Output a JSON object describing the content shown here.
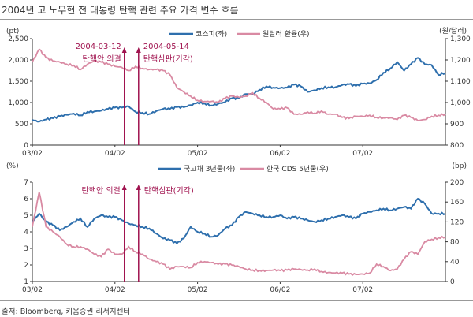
{
  "title": "2004년 고 노무현 전 대통령 탄핵 관련 주요 가격 변수 흐름",
  "source": "출처: Bloomberg, 키움증권 리서치센터",
  "colors": {
    "blue": "#2e6fad",
    "pink": "#d98aa3",
    "annotation": "#a0134f"
  },
  "chart_data": [
    {
      "type": "line",
      "x_ticks": [
        "03/02",
        "04/02",
        "05/02",
        "06/02",
        "07/02"
      ],
      "x_range": [
        "2003-02",
        "2008-02"
      ],
      "ylabel_left": "(pt)",
      "ylabel_right": "(원/달러)",
      "ylim_left": [
        0,
        2500
      ],
      "yticks_left": [
        "0",
        "500",
        "1,000",
        "1,500",
        "2,000",
        "2,500"
      ],
      "ylim_right": [
        800,
        1300
      ],
      "yticks_right": [
        "800",
        "900",
        "1,000",
        "1,100",
        "1,200",
        "1,300"
      ],
      "legend_position": "top-center",
      "series": [
        {
          "name": "코스피(좌)",
          "axis": "left",
          "color": "#2e6fad",
          "values": [
            590,
            550,
            600,
            630,
            680,
            710,
            740,
            700,
            780,
            790,
            810,
            850,
            880,
            880,
            910,
            780,
            760,
            730,
            800,
            850,
            850,
            890,
            890,
            940,
            1000,
            980,
            930,
            970,
            1010,
            1100,
            1100,
            1200,
            1200,
            1300,
            1380,
            1350,
            1340,
            1350,
            1420,
            1380,
            1250,
            1290,
            1340,
            1360,
            1360,
            1410,
            1430,
            1390,
            1440,
            1450,
            1530,
            1700,
            1800,
            1950,
            1750,
            1900,
            2050,
            1900,
            1880,
            1650,
            1700
          ]
        },
        {
          "name": "원달러 환율(우)",
          "axis": "right",
          "color": "#d98aa3",
          "values": [
            1190,
            1250,
            1210,
            1195,
            1190,
            1180,
            1175,
            1155,
            1180,
            1195,
            1190,
            1180,
            1170,
            1165,
            1150,
            1170,
            1160,
            1155,
            1155,
            1150,
            1130,
            1070,
            1050,
            1030,
            1010,
            1005,
            1005,
            1000,
            1020,
            1030,
            1025,
            1030,
            1045,
            1020,
            1000,
            970,
            970,
            975,
            945,
            945,
            955,
            950,
            960,
            945,
            945,
            930,
            925,
            935,
            935,
            940,
            930,
            928,
            928,
            920,
            940,
            930,
            915,
            920,
            935,
            940,
            945
          ]
        }
      ],
      "annotations": [
        {
          "date": "2004-03-12",
          "label1": "2004-03-12",
          "label2": "탄핵안 의결"
        },
        {
          "date": "2004-05-14",
          "label1": "2004-05-14",
          "label2": "탄핵심판(기각)"
        }
      ]
    },
    {
      "type": "line",
      "x_ticks": [
        "03/02",
        "04/02",
        "05/02",
        "06/02",
        "07/02"
      ],
      "x_range": [
        "2003-02",
        "2008-02"
      ],
      "ylabel_left": "(%)",
      "ylabel_right": "(bp)",
      "ylim_left": [
        1,
        7
      ],
      "yticks_left": [
        "1",
        "2",
        "3",
        "4",
        "5",
        "6",
        "7"
      ],
      "ylim_right": [
        0,
        200
      ],
      "yticks_right": [
        "0",
        "40",
        "80",
        "120",
        "160",
        "200"
      ],
      "legend_position": "top-center",
      "series": [
        {
          "name": "국고채 3년물(좌)",
          "axis": "left",
          "color": "#2e6fad",
          "values": [
            4.6,
            5.1,
            4.6,
            4.4,
            4.1,
            4.3,
            4.6,
            4.8,
            4.3,
            4.8,
            5.0,
            4.9,
            4.9,
            4.7,
            4.5,
            4.4,
            4.3,
            4.2,
            3.9,
            3.6,
            3.5,
            3.3,
            3.6,
            4.3,
            4.0,
            3.9,
            3.7,
            3.8,
            4.2,
            4.4,
            4.9,
            5.2,
            5.1,
            5.0,
            4.9,
            4.9,
            5.0,
            4.8,
            4.9,
            4.8,
            4.7,
            4.6,
            4.7,
            4.8,
            4.9,
            5.0,
            4.9,
            4.8,
            5.1,
            5.2,
            5.3,
            5.4,
            5.3,
            5.4,
            5.5,
            5.4,
            6.0,
            5.7,
            5.1,
            5.1,
            5.1
          ]
        },
        {
          "name": "한국 CDS 5년물(우)",
          "axis": "right",
          "color": "#d98aa3",
          "values": [
            110,
            180,
            110,
            100,
            90,
            75,
            70,
            70,
            65,
            55,
            50,
            65,
            55,
            55,
            70,
            60,
            55,
            45,
            40,
            35,
            25,
            30,
            30,
            28,
            38,
            40,
            38,
            35,
            35,
            33,
            30,
            25,
            23,
            22,
            22,
            23,
            22,
            23,
            25,
            24,
            23,
            25,
            20,
            18,
            17,
            17,
            15,
            14,
            15,
            17,
            35,
            30,
            22,
            25,
            45,
            60,
            55,
            80,
            85,
            88,
            90
          ]
        }
      ],
      "annotations": [
        {
          "date": "2004-03-12",
          "label1": "탄핵안 의결"
        },
        {
          "date": "2004-05-14",
          "label1": "탄핵심판(기각)"
        }
      ]
    }
  ]
}
